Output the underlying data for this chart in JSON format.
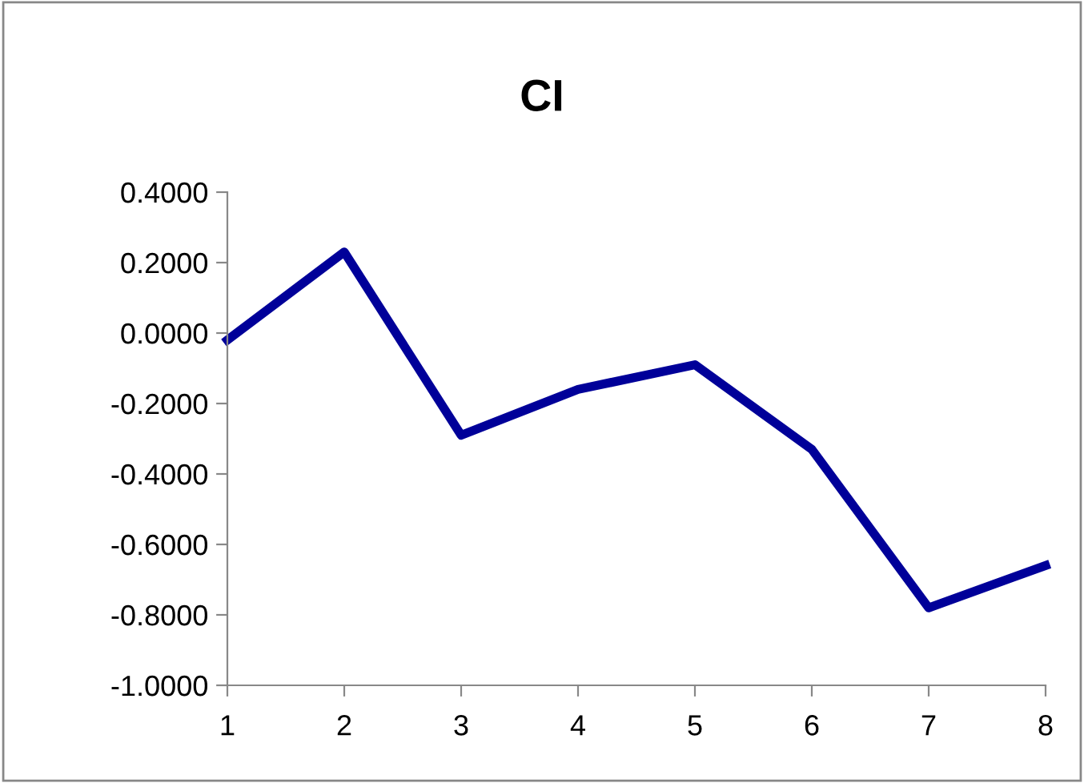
{
  "chart_data": {
    "type": "line",
    "title": "CI",
    "categories": [
      "1",
      "2",
      "3",
      "4",
      "5",
      "6",
      "7",
      "8"
    ],
    "series": [
      {
        "color": "#000099",
        "values": [
          -0.02,
          0.23,
          -0.29,
          -0.16,
          -0.09,
          -0.33,
          -0.78,
          -0.66
        ]
      }
    ],
    "ylim": [
      -1.0,
      0.4
    ],
    "yticks": [
      {
        "value": -1.0,
        "label": "-1.0000"
      },
      {
        "value": -0.8,
        "label": "-0.8000"
      },
      {
        "value": -0.6,
        "label": "-0.6000"
      },
      {
        "value": -0.4,
        "label": "-0.4000"
      },
      {
        "value": -0.2,
        "label": "-0.2000"
      },
      {
        "value": 0,
        "label": "0.0000"
      },
      {
        "value": 0.2,
        "label": "0.2000"
      },
      {
        "value": 0.4,
        "label": "0.4000"
      }
    ],
    "grid": false,
    "legend": false,
    "marker": "none",
    "line_style": "solid"
  }
}
